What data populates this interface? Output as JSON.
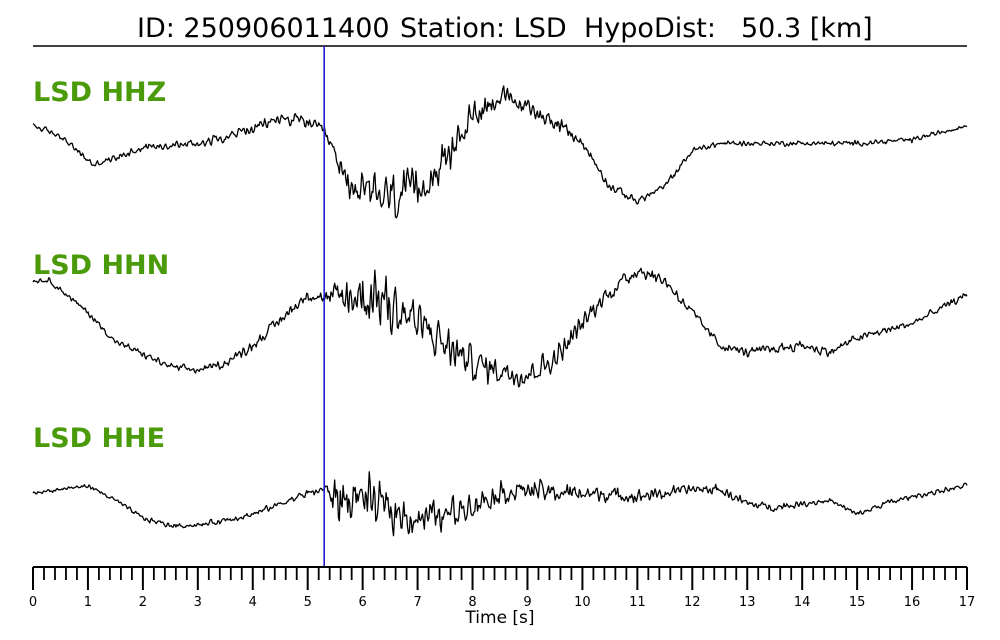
{
  "header": {
    "id_text": "ID: 250906011400",
    "station_text": "Station: LSD",
    "hypodist_text": "HypoDist:",
    "dist_value_text": "50.3 [km]"
  },
  "colors": {
    "trace": "#000000",
    "pick_line": "#1f1fd0",
    "channel_label": "#4a9a0a"
  },
  "chart_data": {
    "type": "line",
    "xlabel": "Time [s]",
    "xlim": [
      0,
      17
    ],
    "x_ticks": [
      "0",
      "1",
      "2",
      "3",
      "4",
      "5",
      "6",
      "7",
      "8",
      "9",
      "10",
      "11",
      "12",
      "13",
      "14",
      "15",
      "16",
      "17"
    ],
    "minor_tick_step": 0.2,
    "pick_time": 5.3,
    "sample_step": 0.017,
    "series": [
      {
        "name": "LSD HHZ",
        "envelope_t": [
          0,
          0.5,
          1.1,
          1.5,
          2.0,
          3.0,
          4.0,
          4.5,
          5.0,
          5.3,
          5.7,
          6.0,
          6.5,
          7.0,
          7.5,
          8.0,
          8.5,
          9.0,
          9.5,
          10.0,
          10.5,
          11.0,
          11.5,
          12.0,
          12.5,
          13.0,
          14.0,
          15.0,
          16.0,
          17.0
        ],
        "envelope_v": [
          0.3,
          0.15,
          -0.25,
          -0.15,
          0.0,
          0.05,
          0.25,
          0.4,
          0.35,
          0.2,
          -0.45,
          -0.65,
          -0.7,
          -0.6,
          -0.2,
          0.45,
          0.7,
          0.55,
          0.35,
          0.05,
          -0.55,
          -0.75,
          -0.55,
          -0.05,
          0.05,
          0.05,
          0.05,
          0.05,
          0.1,
          0.3
        ],
        "noise_amp": [
          0.06,
          0.06,
          0.06,
          0.06,
          0.08,
          0.09,
          0.11,
          0.12,
          0.12,
          0.12,
          0.3,
          0.4,
          0.45,
          0.38,
          0.32,
          0.28,
          0.22,
          0.16,
          0.13,
          0.1,
          0.09,
          0.08,
          0.07,
          0.06,
          0.06,
          0.05,
          0.05,
          0.05,
          0.05,
          0.05
        ]
      },
      {
        "name": "LSD HHN",
        "envelope_t": [
          0,
          0.3,
          1.0,
          1.5,
          2.5,
          3.0,
          3.5,
          4.0,
          4.5,
          5.0,
          5.3,
          5.8,
          6.3,
          7.0,
          7.5,
          8.0,
          8.5,
          9.0,
          9.5,
          10.0,
          10.5,
          11.0,
          11.5,
          12.0,
          12.5,
          13.0,
          14.0,
          14.5,
          15.0,
          16.0,
          17.0
        ],
        "envelope_v": [
          0.55,
          0.55,
          0.1,
          -0.3,
          -0.65,
          -0.7,
          -0.6,
          -0.35,
          0.0,
          0.35,
          0.3,
          0.3,
          0.35,
          -0.05,
          -0.35,
          -0.6,
          -0.7,
          -0.75,
          -0.55,
          -0.05,
          0.4,
          0.7,
          0.55,
          0.1,
          -0.35,
          -0.45,
          -0.35,
          -0.45,
          -0.25,
          -0.05,
          0.35
        ],
        "noise_amp": [
          0.05,
          0.05,
          0.06,
          0.06,
          0.07,
          0.07,
          0.08,
          0.1,
          0.11,
          0.11,
          0.12,
          0.55,
          0.65,
          0.5,
          0.4,
          0.32,
          0.26,
          0.24,
          0.22,
          0.2,
          0.18,
          0.14,
          0.12,
          0.1,
          0.09,
          0.09,
          0.09,
          0.09,
          0.08,
          0.07,
          0.07
        ]
      },
      {
        "name": "LSD HHE",
        "envelope_t": [
          0,
          1.0,
          1.5,
          2.0,
          2.5,
          3.0,
          4.0,
          5.0,
          5.3,
          5.6,
          6.0,
          6.5,
          7.0,
          7.5,
          8.0,
          8.5,
          9.0,
          9.5,
          10.0,
          11.0,
          12.0,
          12.5,
          13.0,
          13.5,
          14.0,
          14.5,
          15.0,
          15.5,
          16.0,
          17.0
        ],
        "envelope_v": [
          0.0,
          0.1,
          -0.1,
          -0.35,
          -0.45,
          -0.45,
          -0.3,
          0.0,
          0.05,
          -0.1,
          -0.05,
          -0.25,
          -0.35,
          -0.3,
          -0.15,
          0.0,
          0.05,
          0.0,
          0.0,
          -0.05,
          0.05,
          0.05,
          -0.15,
          -0.2,
          -0.15,
          -0.1,
          -0.3,
          -0.15,
          -0.05,
          0.1
        ],
        "noise_amp": [
          0.04,
          0.04,
          0.04,
          0.05,
          0.05,
          0.05,
          0.06,
          0.07,
          0.1,
          0.55,
          0.45,
          0.4,
          0.35,
          0.3,
          0.26,
          0.22,
          0.2,
          0.18,
          0.16,
          0.13,
          0.1,
          0.1,
          0.08,
          0.07,
          0.06,
          0.06,
          0.06,
          0.06,
          0.05,
          0.05
        ]
      }
    ]
  }
}
